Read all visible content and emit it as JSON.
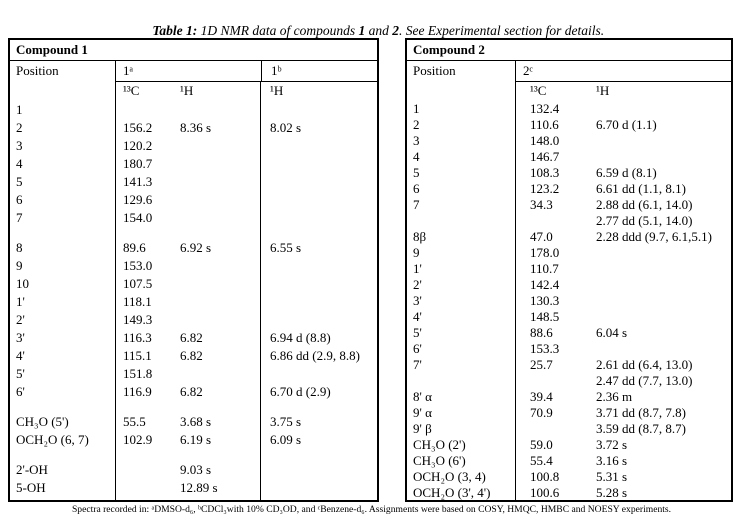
{
  "title": {
    "part1": "Table 1:",
    "part2": " 1D NMR data of compounds ",
    "part3": "1",
    "part4": " and ",
    "part5": "2",
    "part6": ". See Experimental section for details."
  },
  "compound1": {
    "header": "Compound 1",
    "col_position": "Position",
    "col_a": "1ᵃ",
    "col_b": "1ᵇ",
    "sub_c13": "¹³C",
    "sub_h1a": "¹H",
    "sub_h1b": "¹H",
    "rows": [
      {
        "pos": "1",
        "c13": "",
        "h1a": "",
        "h1b": ""
      },
      {
        "pos": "2",
        "c13": "156.2",
        "h1a": "8.36 s",
        "h1b": "8.02 s"
      },
      {
        "pos": "3",
        "c13": "120.2",
        "h1a": "",
        "h1b": ""
      },
      {
        "pos": "4",
        "c13": "180.7",
        "h1a": "",
        "h1b": ""
      },
      {
        "pos": "5",
        "c13": "141.3",
        "h1a": "",
        "h1b": ""
      },
      {
        "pos": "6",
        "c13": "129.6",
        "h1a": "",
        "h1b": ""
      },
      {
        "pos": "7",
        "c13": "154.0",
        "h1a": "",
        "h1b": ""
      },
      {
        "type": "spacer",
        "pos": "",
        "c13": "",
        "h1a": "",
        "h1b": ""
      },
      {
        "pos": "8",
        "c13": "89.6",
        "h1a": "6.92 s",
        "h1b": "6.55 s"
      },
      {
        "pos": "9",
        "c13": "153.0",
        "h1a": "",
        "h1b": ""
      },
      {
        "pos": "10",
        "c13": "107.5",
        "h1a": "",
        "h1b": ""
      },
      {
        "pos": "1'",
        "c13": "118.1",
        "h1a": "",
        "h1b": ""
      },
      {
        "pos": "2'",
        "c13": "149.3",
        "h1a": "",
        "h1b": ""
      },
      {
        "pos": "3'",
        "c13": "116.3",
        "h1a": "6.82",
        "h1b": "6.94 d (8.8)"
      },
      {
        "pos": "4'",
        "c13": "115.1",
        "h1a": "6.82",
        "h1b": "6.86 dd (2.9, 8.8)"
      },
      {
        "pos": "5'",
        "c13": "151.8",
        "h1a": "",
        "h1b": ""
      },
      {
        "pos": "6'",
        "c13": "116.9",
        "h1a": "6.82",
        "h1b": "6.70 d (2.9)"
      },
      {
        "type": "spacer",
        "pos": "",
        "c13": "",
        "h1a": "",
        "h1b": ""
      },
      {
        "pos": "CH₃O (5')",
        "c13": "55.5",
        "h1a": "3.68 s",
        "h1b": "3.75 s"
      },
      {
        "pos": "OCH₂O (6, 7)",
        "c13": "102.9",
        "h1a": "6.19 s",
        "h1b": "6.09 s"
      },
      {
        "type": "spacer",
        "pos": "",
        "c13": "",
        "h1a": "",
        "h1b": ""
      },
      {
        "pos": "2'-OH",
        "c13": "",
        "h1a": "9.03 s",
        "h1b": ""
      },
      {
        "pos": "5-OH",
        "c13": "",
        "h1a": "12.89 s",
        "h1b": ""
      }
    ]
  },
  "compound2": {
    "header": "Compound 2",
    "col_position": "Position",
    "col_a": "2ᶜ",
    "sub_c13": "¹³C",
    "sub_h1": "¹H",
    "rows": [
      {
        "pos": "1",
        "c13": "132.4",
        "h1": ""
      },
      {
        "pos": "2",
        "c13": "110.6",
        "h1": "6.70 d (1.1)"
      },
      {
        "pos": "3",
        "c13": "148.0",
        "h1": ""
      },
      {
        "pos": "4",
        "c13": "146.7",
        "h1": ""
      },
      {
        "pos": "5",
        "c13": "108.3",
        "h1": "6.59 d (8.1)"
      },
      {
        "pos": "6",
        "c13": "123.2",
        "h1": "6.61 dd (1.1, 8.1)"
      },
      {
        "pos": "7",
        "c13": "34.3",
        "h1": "2.88 dd (6.1, 14.0)\n2.77 dd (5.1, 14.0)"
      },
      {
        "pos": "8β",
        "c13": "47.0",
        "h1": "2.28 ddd (9.7, 6.1,5.1)"
      },
      {
        "pos": "9",
        "c13": "178.0",
        "h1": ""
      },
      {
        "pos": "1'",
        "c13": "110.7",
        "h1": ""
      },
      {
        "pos": "2'",
        "c13": "142.4",
        "h1": ""
      },
      {
        "pos": "3'",
        "c13": "130.3",
        "h1": ""
      },
      {
        "pos": "4'",
        "c13": "148.5",
        "h1": ""
      },
      {
        "pos": "5'",
        "c13": "88.6",
        "h1": "6.04 s"
      },
      {
        "pos": "6'",
        "c13": "153.3",
        "h1": ""
      },
      {
        "pos": "7'",
        "c13": "25.7",
        "h1": "2.61 dd (6.4, 13.0)\n2.47 dd (7.7, 13.0)"
      },
      {
        "pos": "8' α",
        "c13": "39.4",
        "h1": "2.36 m"
      },
      {
        "pos": "9' α",
        "c13": "70.9",
        "h1": "3.71 dd (8.7, 7.8)"
      },
      {
        "pos": "9' β",
        "c13": "",
        "h1": "3.59 dd (8.7, 8.7)"
      },
      {
        "pos": "CH₃O (2')",
        "c13": "59.0",
        "h1": "3.72 s"
      },
      {
        "pos": "CH₃O (6')",
        "c13": "55.4",
        "h1": "3.16 s"
      },
      {
        "pos": "OCH₂O (3, 4)",
        "c13": "100.8",
        "h1": "5.31 s"
      },
      {
        "pos": "OCH₂O (3', 4')",
        "c13": "100.6",
        "h1": "5.28 s"
      }
    ]
  },
  "footnote": "Spectra recorded in: ᵃDMSO-d₆, ᵇCDCl₃with 10% CD₃OD, and ᶜBenzene-d₆. Assignments were based on COSY, HMQC, HMBC and NOESY experiments."
}
